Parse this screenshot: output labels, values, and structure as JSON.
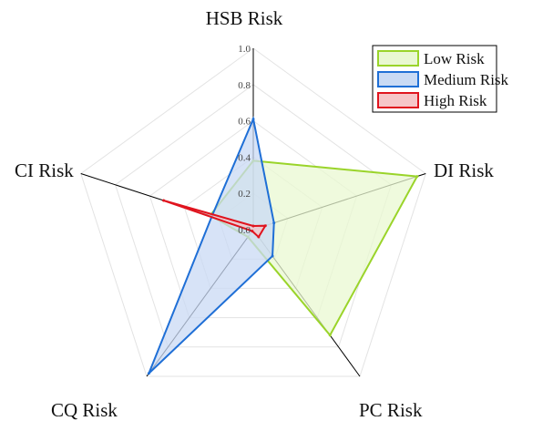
{
  "chart_data": {
    "type": "radar",
    "axes": [
      "HSB Risk",
      "DI Risk",
      "PC Risk",
      "CQ Risk",
      "CI Risk"
    ],
    "rlim": [
      0,
      1.0
    ],
    "ticks": [
      "0.0",
      "0.2",
      "0.4",
      "0.6",
      "0.8",
      "1.0"
    ],
    "series": [
      {
        "name": "Low Risk",
        "values": [
          0.38,
          0.95,
          0.72,
          0.05,
          0.25
        ],
        "stroke": "#9ad42a",
        "fill": "#e9f8d2"
      },
      {
        "name": "Medium Risk",
        "values": [
          0.61,
          0.12,
          0.18,
          0.98,
          0.24
        ],
        "stroke": "#1f6fd6",
        "fill": "#c9daf4"
      },
      {
        "name": "High Risk",
        "values": [
          0.02,
          0.07,
          0.05,
          0.01,
          0.52
        ],
        "stroke": "#e0141e",
        "fill": "#f6c6c8"
      }
    ],
    "legend_position": "top-right",
    "grid": true
  }
}
